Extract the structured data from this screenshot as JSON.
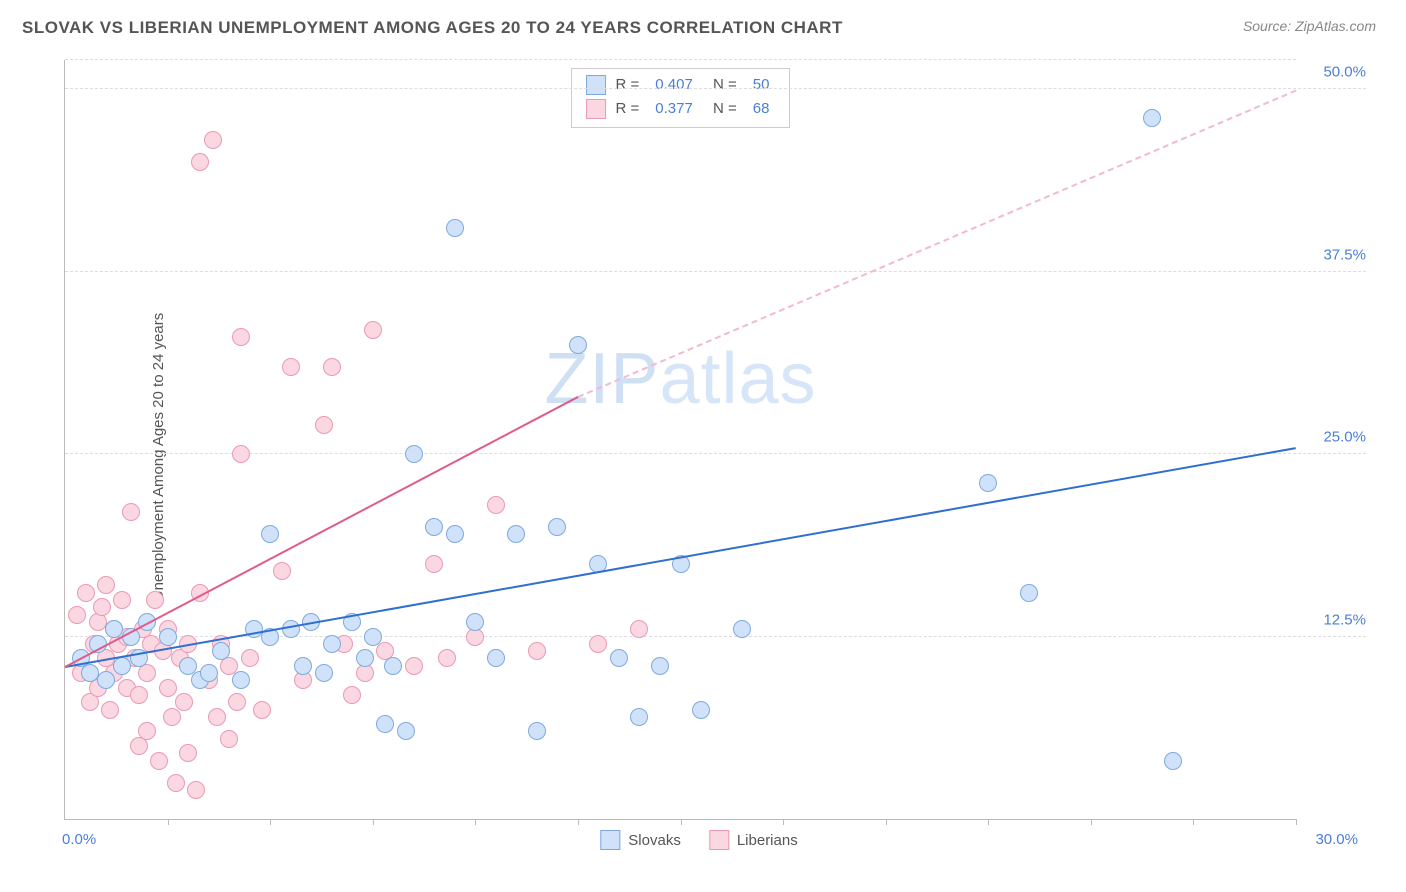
{
  "header": {
    "title": "SLOVAK VS LIBERIAN UNEMPLOYMENT AMONG AGES 20 TO 24 YEARS CORRELATION CHART",
    "source": "Source: ZipAtlas.com"
  },
  "y_axis_label": "Unemployment Among Ages 20 to 24 years",
  "watermark": {
    "part1": "ZIP",
    "part2": "atlas"
  },
  "axes": {
    "x_min": 0,
    "x_max": 30,
    "x_origin_label": "0.0%",
    "x_max_label": "30.0%",
    "x_ticks": [
      2.5,
      5,
      7.5,
      10,
      12.5,
      15,
      17.5,
      20,
      22.5,
      25,
      27.5,
      30
    ],
    "y_min": 0,
    "y_max": 52,
    "y_gridlines": [
      {
        "v": 12.5,
        "label": "12.5%"
      },
      {
        "v": 25,
        "label": "25.0%"
      },
      {
        "v": 37.5,
        "label": "37.5%"
      },
      {
        "v": 50,
        "label": "50.0%"
      }
    ]
  },
  "series": [
    {
      "name": "Slovaks",
      "fill": "#cfe2f9",
      "stroke": "#7fa9de",
      "marker_radius": 9,
      "stats": {
        "R": "0.407",
        "N": "50"
      },
      "trend": {
        "x1": 0,
        "y1": 10.5,
        "x2_solid": 30,
        "y2_solid": 25.5,
        "color": "#2f6fd0"
      },
      "points": [
        [
          0.4,
          11
        ],
        [
          0.6,
          10
        ],
        [
          0.8,
          12
        ],
        [
          1.0,
          9.5
        ],
        [
          1.2,
          13
        ],
        [
          1.4,
          10.5
        ],
        [
          1.6,
          12.5
        ],
        [
          1.8,
          11
        ],
        [
          2.0,
          13.5
        ],
        [
          2.5,
          12.5
        ],
        [
          3.0,
          10.5
        ],
        [
          3.3,
          9.5
        ],
        [
          3.5,
          10
        ],
        [
          3.8,
          11.5
        ],
        [
          4.3,
          9.5
        ],
        [
          4.6,
          13
        ],
        [
          5.0,
          12.5
        ],
        [
          5.0,
          19.5
        ],
        [
          5.5,
          13
        ],
        [
          5.8,
          10.5
        ],
        [
          6.0,
          13.5
        ],
        [
          6.3,
          10
        ],
        [
          6.5,
          12
        ],
        [
          7.0,
          13.5
        ],
        [
          7.3,
          11
        ],
        [
          7.5,
          12.5
        ],
        [
          7.8,
          6.5
        ],
        [
          8.0,
          10.5
        ],
        [
          8.3,
          6
        ],
        [
          8.5,
          25
        ],
        [
          9.0,
          20
        ],
        [
          9.5,
          19.5
        ],
        [
          9.5,
          40.5
        ],
        [
          10.0,
          13.5
        ],
        [
          10.5,
          11
        ],
        [
          11.0,
          19.5
        ],
        [
          11.5,
          6
        ],
        [
          12.0,
          20
        ],
        [
          12.5,
          32.5
        ],
        [
          13.0,
          17.5
        ],
        [
          13.5,
          11
        ],
        [
          14.0,
          7
        ],
        [
          14.5,
          10.5
        ],
        [
          15.0,
          17.5
        ],
        [
          15.5,
          7.5
        ],
        [
          16.5,
          13
        ],
        [
          22.5,
          23
        ],
        [
          23.5,
          15.5
        ],
        [
          26.5,
          48
        ],
        [
          27.0,
          4
        ]
      ]
    },
    {
      "name": "Liberians",
      "fill": "#fbd7e2",
      "stroke": "#e99ab4",
      "marker_radius": 9,
      "stats": {
        "R": "0.377",
        "N": "68"
      },
      "trend": {
        "x1": 0,
        "y1": 10.5,
        "x2_solid": 12.5,
        "y2_solid": 29,
        "x2_dash": 30,
        "y2_dash": 50,
        "color_solid": "#e05b8a",
        "color_dash": "#f2b9cf"
      },
      "points": [
        [
          0.3,
          14
        ],
        [
          0.4,
          10
        ],
        [
          0.5,
          15.5
        ],
        [
          0.6,
          8
        ],
        [
          0.7,
          12
        ],
        [
          0.8,
          13.5
        ],
        [
          0.8,
          9
        ],
        [
          0.9,
          14.5
        ],
        [
          1.0,
          11
        ],
        [
          1.0,
          16
        ],
        [
          1.1,
          7.5
        ],
        [
          1.2,
          13
        ],
        [
          1.2,
          10
        ],
        [
          1.3,
          12
        ],
        [
          1.4,
          15
        ],
        [
          1.5,
          9
        ],
        [
          1.5,
          12.5
        ],
        [
          1.6,
          21
        ],
        [
          1.7,
          11
        ],
        [
          1.8,
          5
        ],
        [
          1.8,
          8.5
        ],
        [
          1.9,
          13
        ],
        [
          2.0,
          10
        ],
        [
          2.0,
          6
        ],
        [
          2.1,
          12
        ],
        [
          2.2,
          15
        ],
        [
          2.3,
          4
        ],
        [
          2.4,
          11.5
        ],
        [
          2.5,
          9
        ],
        [
          2.5,
          13
        ],
        [
          2.6,
          7
        ],
        [
          2.7,
          2.5
        ],
        [
          2.8,
          11
        ],
        [
          2.9,
          8
        ],
        [
          3.0,
          12
        ],
        [
          3.0,
          4.5
        ],
        [
          3.2,
          2
        ],
        [
          3.3,
          15.5
        ],
        [
          3.3,
          45
        ],
        [
          3.5,
          9.5
        ],
        [
          3.6,
          46.5
        ],
        [
          3.7,
          7
        ],
        [
          3.8,
          12
        ],
        [
          4.0,
          5.5
        ],
        [
          4.0,
          10.5
        ],
        [
          4.2,
          8
        ],
        [
          4.3,
          33
        ],
        [
          4.3,
          25
        ],
        [
          4.5,
          11
        ],
        [
          4.8,
          7.5
        ],
        [
          5.3,
          17
        ],
        [
          5.5,
          31
        ],
        [
          5.8,
          9.5
        ],
        [
          6.3,
          27
        ],
        [
          6.5,
          31
        ],
        [
          6.8,
          12
        ],
        [
          7.0,
          8.5
        ],
        [
          7.3,
          10
        ],
        [
          7.5,
          33.5
        ],
        [
          7.8,
          11.5
        ],
        [
          8.5,
          10.5
        ],
        [
          9.0,
          17.5
        ],
        [
          9.3,
          11
        ],
        [
          10.0,
          12.5
        ],
        [
          10.5,
          21.5
        ],
        [
          11.5,
          11.5
        ],
        [
          13.0,
          12
        ],
        [
          14.0,
          13
        ]
      ]
    }
  ],
  "bottom_legend": [
    "Slovaks",
    "Liberians"
  ]
}
